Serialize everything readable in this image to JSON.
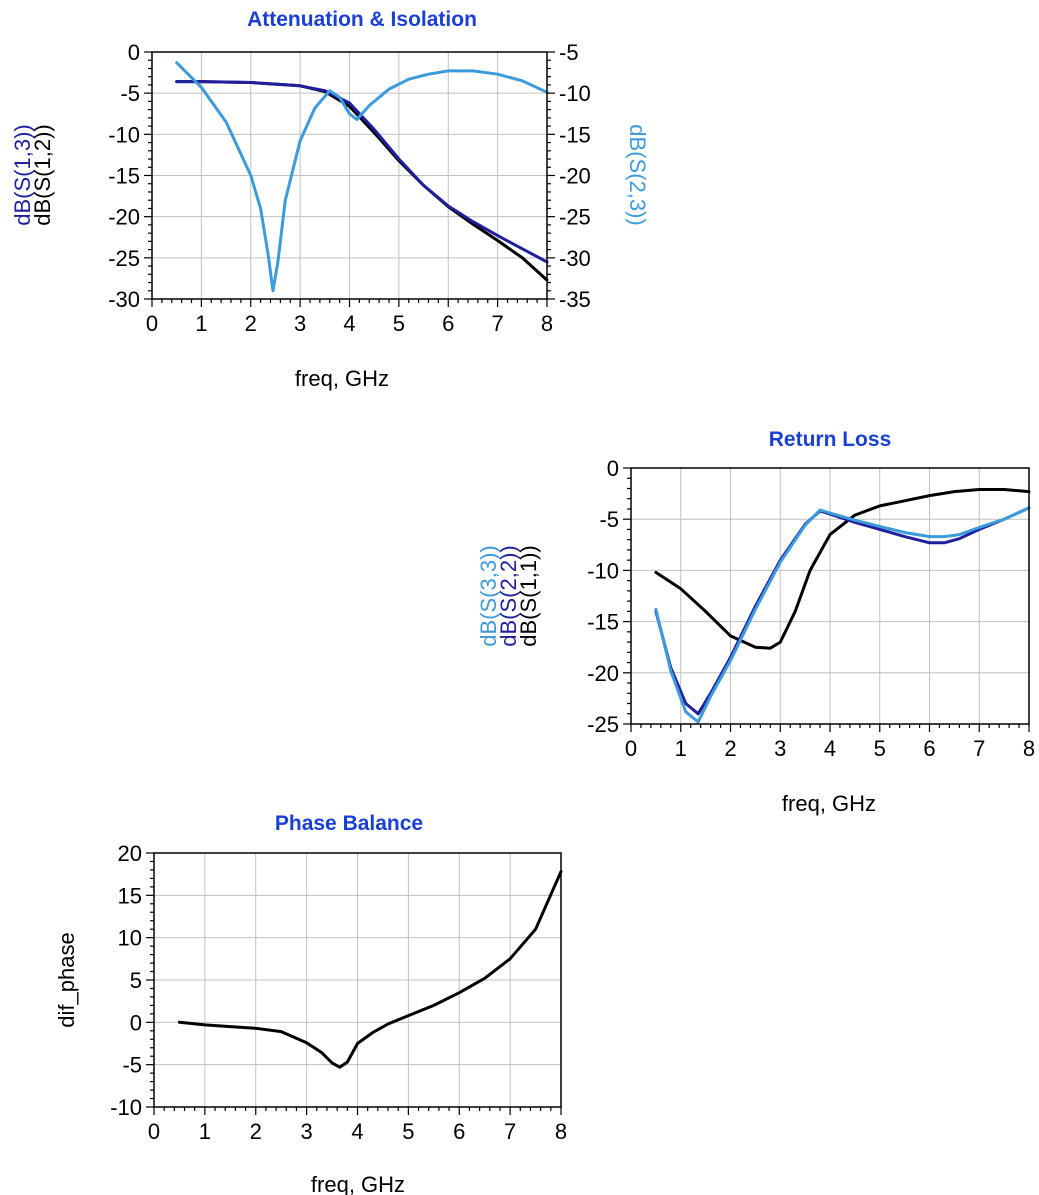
{
  "colors": {
    "title": "#1a3fd6",
    "s11_black": "#000000",
    "s13_darkblue": "#1f1f9e",
    "s23_lightblue": "#3b9bdb"
  },
  "chart_data": [
    {
      "id": "attenuation",
      "type": "line",
      "title": "Attenuation & Isolation",
      "xlabel": "freq, GHz",
      "xlim": [
        0,
        8
      ],
      "xticks": [
        0,
        1,
        2,
        3,
        4,
        5,
        6,
        7,
        8
      ],
      "ylim": [
        -30,
        0
      ],
      "yticks": [
        0,
        -5,
        -10,
        -15,
        -20,
        -25,
        -30
      ],
      "y2lim": [
        -35,
        -5
      ],
      "y2ticks": [
        -5,
        -10,
        -15,
        -20,
        -25,
        -30,
        -35
      ],
      "ylabels": [
        {
          "text": "dB(S(1,3))",
          "color": "#1f1f9e"
        },
        {
          "text": "dB(S(1,2))",
          "color": "#000000"
        }
      ],
      "y2labels": [
        {
          "text": "dB(S(2,3))",
          "color": "#3b9bdb"
        }
      ],
      "grid": true,
      "series": [
        {
          "name": "dB(S(1,2))",
          "color": "#000000",
          "axis": "left",
          "x": [
            0.5,
            1,
            2,
            3,
            3.5,
            4,
            4.5,
            5,
            5.5,
            6,
            6.5,
            7,
            7.5,
            8
          ],
          "y": [
            -3.6,
            -3.6,
            -3.7,
            -4.1,
            -4.8,
            -6.6,
            -9.8,
            -13.2,
            -16.2,
            -18.8,
            -20.9,
            -22.9,
            -25.0,
            -27.7
          ]
        },
        {
          "name": "dB(S(1,3))",
          "color": "#1f1f9e",
          "axis": "left",
          "x": [
            0.5,
            1,
            2,
            3,
            3.5,
            4,
            4.5,
            5,
            5.5,
            6,
            6.5,
            7,
            7.5,
            8
          ],
          "y": [
            -3.6,
            -3.6,
            -3.7,
            -4.1,
            -4.7,
            -6.2,
            -9.4,
            -13.0,
            -16.2,
            -18.7,
            -20.6,
            -22.3,
            -23.9,
            -25.5
          ]
        },
        {
          "name": "dB(S(2,3))",
          "color": "#3b9bdb",
          "axis": "right",
          "x": [
            0.5,
            1,
            1.5,
            2,
            2.2,
            2.35,
            2.45,
            2.55,
            2.7,
            3,
            3.3,
            3.6,
            3.8,
            4.0,
            4.15,
            4.4,
            4.8,
            5.2,
            5.6,
            6,
            6.5,
            7,
            7.5,
            8
          ],
          "y": [
            -6.3,
            -9.3,
            -13.5,
            -20.0,
            -24.0,
            -29.5,
            -34.0,
            -30.5,
            -23.0,
            -15.8,
            -11.8,
            -9.7,
            -10.5,
            -12.5,
            -13.2,
            -11.5,
            -9.5,
            -8.3,
            -7.7,
            -7.3,
            -7.3,
            -7.7,
            -8.5,
            -9.9
          ]
        }
      ]
    },
    {
      "id": "returnloss",
      "type": "line",
      "title": "Return Loss",
      "xlabel": "freq, GHz",
      "xlim": [
        0,
        8
      ],
      "xticks": [
        0,
        1,
        2,
        3,
        4,
        5,
        6,
        7,
        8
      ],
      "ylim": [
        -25,
        0
      ],
      "yticks": [
        0,
        -5,
        -10,
        -15,
        -20,
        -25
      ],
      "ylabels": [
        {
          "text": "dB(S(3,3))",
          "color": "#3b9bdb"
        },
        {
          "text": "dB(S(2,2))",
          "color": "#1f1f9e"
        },
        {
          "text": "dB(S(1,1))",
          "color": "#000000"
        }
      ],
      "grid": true,
      "series": [
        {
          "name": "dB(S(1,1))",
          "color": "#000000",
          "axis": "left",
          "x": [
            0.5,
            1,
            1.5,
            2,
            2.5,
            2.8,
            3,
            3.3,
            3.6,
            4,
            4.5,
            5,
            5.5,
            6,
            6.5,
            7,
            7.5,
            8
          ],
          "y": [
            -10.2,
            -11.8,
            -14.0,
            -16.4,
            -17.5,
            -17.6,
            -17.0,
            -14.0,
            -10.0,
            -6.5,
            -4.6,
            -3.7,
            -3.2,
            -2.7,
            -2.3,
            -2.1,
            -2.1,
            -2.3
          ]
        },
        {
          "name": "dB(S(2,2))",
          "color": "#1f1f9e",
          "axis": "left",
          "x": [
            0.5,
            0.8,
            1.1,
            1.35,
            1.6,
            2,
            2.5,
            3,
            3.5,
            3.8,
            4,
            4.5,
            5,
            5.5,
            6,
            6.3,
            6.6,
            7,
            7.5,
            8
          ],
          "y": [
            -14.0,
            -19.5,
            -23.0,
            -24.0,
            -22.0,
            -18.5,
            -13.5,
            -9.0,
            -5.5,
            -4.2,
            -4.5,
            -5.3,
            -6.0,
            -6.7,
            -7.3,
            -7.3,
            -6.9,
            -6.0,
            -5.0,
            -3.9
          ]
        },
        {
          "name": "dB(S(3,3))",
          "color": "#3b9bdb",
          "axis": "left",
          "x": [
            0.5,
            0.8,
            1.1,
            1.35,
            1.6,
            2,
            2.5,
            3,
            3.5,
            3.8,
            4,
            4.5,
            5,
            5.5,
            6,
            6.3,
            6.6,
            7,
            7.5,
            8
          ],
          "y": [
            -13.8,
            -19.8,
            -23.8,
            -24.8,
            -22.3,
            -18.8,
            -13.8,
            -9.2,
            -5.6,
            -4.1,
            -4.4,
            -5.1,
            -5.7,
            -6.3,
            -6.7,
            -6.7,
            -6.5,
            -5.8,
            -5.0,
            -3.9
          ]
        }
      ]
    },
    {
      "id": "phasebalance",
      "type": "line",
      "title": "Phase Balance",
      "xlabel": "freq, GHz",
      "xlim": [
        0,
        8
      ],
      "xticks": [
        0,
        1,
        2,
        3,
        4,
        5,
        6,
        7,
        8
      ],
      "ylim": [
        -10,
        20
      ],
      "yticks": [
        20,
        15,
        10,
        5,
        0,
        -5,
        -10
      ],
      "ylabels": [
        {
          "text": "dif_phase",
          "color": "#000000"
        }
      ],
      "grid": true,
      "series": [
        {
          "name": "dif_phase",
          "color": "#000000",
          "axis": "left",
          "x": [
            0.5,
            1,
            1.5,
            2,
            2.5,
            3,
            3.3,
            3.5,
            3.65,
            3.8,
            4,
            4.3,
            4.6,
            5,
            5.5,
            6,
            6.5,
            7,
            7.5,
            8
          ],
          "y": [
            0.0,
            -0.3,
            -0.5,
            -0.7,
            -1.1,
            -2.4,
            -3.6,
            -4.8,
            -5.3,
            -4.7,
            -2.5,
            -1.2,
            -0.2,
            0.8,
            2.0,
            3.5,
            5.2,
            7.5,
            11.0,
            17.8
          ]
        }
      ]
    }
  ]
}
